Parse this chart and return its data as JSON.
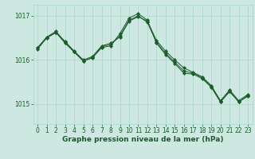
{
  "bg_color": "#cce8e0",
  "grid_color": "#a8d8cc",
  "line_color": "#1a5c2a",
  "xlabel": "Graphe pression niveau de la mer (hPa)",
  "xlabel_fontsize": 6.5,
  "tick_fontsize": 5.5,
  "ylim": [
    1014.55,
    1017.25
  ],
  "yticks": [
    1015,
    1016,
    1017
  ],
  "xlim": [
    -0.5,
    23.5
  ],
  "xticks": [
    0,
    1,
    2,
    3,
    4,
    5,
    6,
    7,
    8,
    9,
    10,
    11,
    12,
    13,
    14,
    15,
    16,
    17,
    18,
    19,
    20,
    21,
    22,
    23
  ],
  "line1": [
    1016.28,
    1016.52,
    1016.62,
    1016.42,
    1016.2,
    1016.0,
    1016.08,
    1016.32,
    1016.38,
    1016.52,
    1016.88,
    1016.98,
    1016.88,
    1016.44,
    1016.2,
    1016.0,
    1015.82,
    1015.72,
    1015.62,
    1015.42,
    1015.08,
    1015.32,
    1015.08,
    1015.22
  ],
  "line2": [
    1016.28,
    1016.52,
    1016.65,
    1016.4,
    1016.18,
    1015.98,
    1016.05,
    1016.28,
    1016.32,
    1016.6,
    1016.95,
    1017.05,
    1016.9,
    1016.38,
    1016.12,
    1015.92,
    1015.7,
    1015.68,
    1015.58,
    1015.38,
    1015.05,
    1015.28,
    1015.05,
    1015.2
  ],
  "line3": [
    1016.25,
    1016.5,
    1016.62,
    1016.38,
    1016.18,
    1015.97,
    1016.06,
    1016.3,
    1016.35,
    1016.55,
    1016.9,
    1017.0,
    1016.85,
    1016.4,
    1016.15,
    1015.95,
    1015.75,
    1015.7,
    1015.6,
    1015.4,
    1015.05,
    1015.3,
    1015.05,
    1015.18
  ]
}
